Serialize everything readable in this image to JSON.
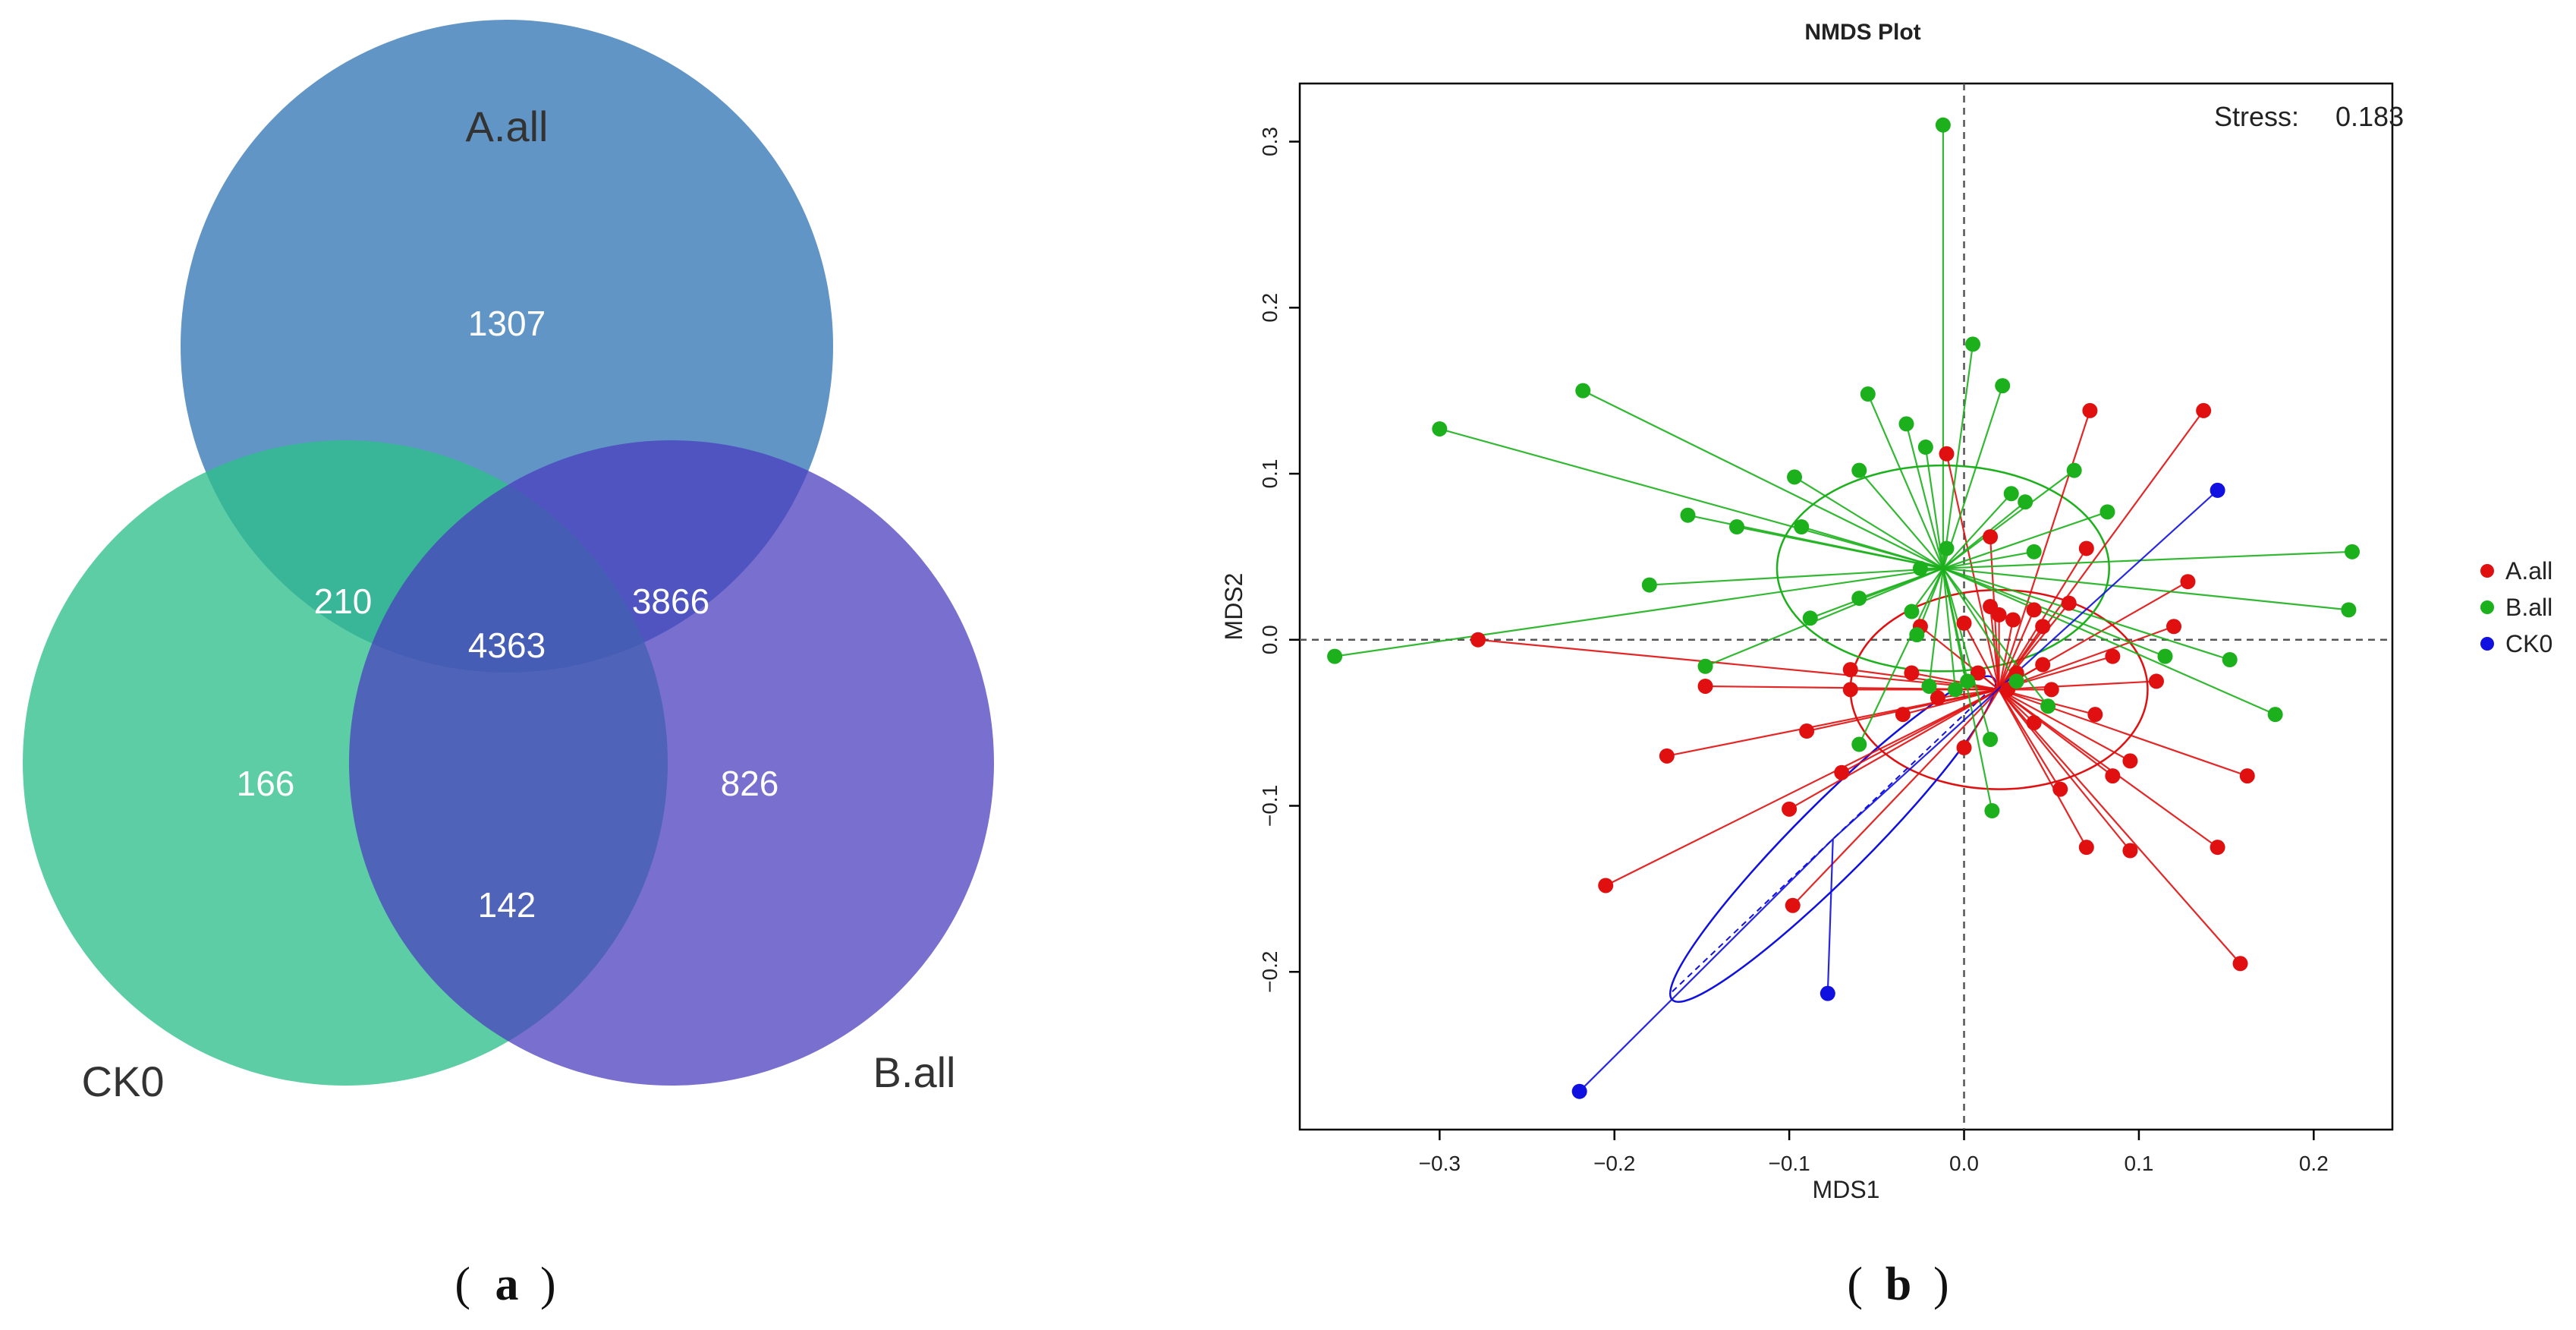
{
  "chart_data": [
    {
      "type": "venn",
      "panel_label": "(a)",
      "panel_letter": "a",
      "sets": [
        {
          "name": "A.all",
          "color": "#3a7ab8"
        },
        {
          "name": "CK0",
          "color": "#2ebf8a"
        },
        {
          "name": "B.all",
          "color": "#4b3fbf"
        }
      ],
      "regions": {
        "a_only": "1307",
        "ck0_only": "166",
        "b_only": "826",
        "a_ck0": "210",
        "a_b": "3866",
        "ck0_b": "142",
        "all_three": "4363"
      }
    },
    {
      "type": "scatter",
      "panel_label": "(b)",
      "panel_letter": "b",
      "title": "NMDS Plot",
      "xlabel": "MDS1",
      "ylabel": "MDS2",
      "xlim": [
        -0.38,
        0.245
      ],
      "ylim": [
        -0.295,
        0.335
      ],
      "x_ticks": [
        -0.3,
        -0.2,
        -0.1,
        0.0,
        0.1,
        0.2
      ],
      "x_tick_labels": [
        "−0.3",
        "−0.2",
        "−0.1",
        "0.0",
        "0.1",
        "0.2"
      ],
      "y_ticks": [
        -0.2,
        -0.1,
        0.0,
        0.1,
        0.2,
        0.3
      ],
      "y_tick_labels": [
        "−0.2",
        "−0.1",
        "0.0",
        "0.1",
        "0.2",
        "0.3"
      ],
      "stress_label": "Stress:",
      "stress_value": "0.183",
      "legend_position": "right",
      "series": [
        {
          "name": "A.all",
          "color": "#e01010",
          "centroid": [
            0.02,
            -0.03
          ],
          "ellipse": {
            "rx": 0.085,
            "ry": 0.06,
            "angle": 0
          },
          "points": [
            [
              0.072,
              0.138
            ],
            [
              0.137,
              0.138
            ],
            [
              -0.01,
              0.112
            ],
            [
              0.015,
              0.062
            ],
            [
              0.07,
              0.055
            ],
            [
              0.128,
              0.035
            ],
            [
              0.015,
              0.02
            ],
            [
              0.02,
              0.015
            ],
            [
              0.04,
              0.018
            ],
            [
              0.06,
              0.022
            ],
            [
              -0.025,
              0.008
            ],
            [
              0.0,
              0.01
            ],
            [
              0.028,
              0.012
            ],
            [
              0.045,
              0.008
            ],
            [
              0.12,
              0.008
            ],
            [
              -0.065,
              -0.018
            ],
            [
              -0.03,
              -0.02
            ],
            [
              0.008,
              -0.02
            ],
            [
              0.03,
              -0.02
            ],
            [
              0.045,
              -0.015
            ],
            [
              0.085,
              -0.01
            ],
            [
              -0.148,
              -0.028
            ],
            [
              -0.065,
              -0.03
            ],
            [
              -0.015,
              -0.035
            ],
            [
              0.025,
              -0.03
            ],
            [
              0.05,
              -0.03
            ],
            [
              0.11,
              -0.025
            ],
            [
              -0.035,
              -0.045
            ],
            [
              0.04,
              -0.05
            ],
            [
              0.075,
              -0.045
            ],
            [
              -0.09,
              -0.055
            ],
            [
              0.0,
              -0.065
            ],
            [
              0.095,
              -0.073
            ],
            [
              -0.17,
              -0.07
            ],
            [
              -0.07,
              -0.08
            ],
            [
              0.055,
              -0.09
            ],
            [
              0.085,
              -0.082
            ],
            [
              0.162,
              -0.082
            ],
            [
              -0.1,
              -0.102
            ],
            [
              0.07,
              -0.125
            ],
            [
              0.095,
              -0.127
            ],
            [
              0.145,
              -0.125
            ],
            [
              -0.205,
              -0.148
            ],
            [
              -0.098,
              -0.16
            ],
            [
              0.158,
              -0.195
            ],
            [
              -0.278,
              0.0
            ]
          ]
        },
        {
          "name": "B.all",
          "color": "#1cb01c",
          "centroid": [
            -0.012,
            0.043
          ],
          "ellipse": {
            "rx": 0.095,
            "ry": 0.062,
            "angle": 0
          },
          "points": [
            [
              -0.012,
              0.31
            ],
            [
              0.005,
              0.178
            ],
            [
              0.022,
              0.153
            ],
            [
              -0.218,
              0.15
            ],
            [
              -0.055,
              0.148
            ],
            [
              -0.3,
              0.127
            ],
            [
              -0.033,
              0.13
            ],
            [
              -0.022,
              0.116
            ],
            [
              0.063,
              0.102
            ],
            [
              -0.097,
              0.098
            ],
            [
              -0.06,
              0.102
            ],
            [
              0.027,
              0.088
            ],
            [
              0.035,
              0.083
            ],
            [
              -0.158,
              0.075
            ],
            [
              -0.13,
              0.068
            ],
            [
              -0.093,
              0.068
            ],
            [
              0.082,
              0.077
            ],
            [
              0.04,
              0.053
            ],
            [
              0.222,
              0.053
            ],
            [
              -0.01,
              0.055
            ],
            [
              -0.18,
              0.033
            ],
            [
              -0.025,
              0.043
            ],
            [
              -0.088,
              0.013
            ],
            [
              -0.03,
              0.017
            ],
            [
              -0.06,
              0.025
            ],
            [
              0.22,
              0.018
            ],
            [
              -0.027,
              0.003
            ],
            [
              -0.148,
              -0.016
            ],
            [
              0.152,
              -0.012
            ],
            [
              0.115,
              -0.01
            ],
            [
              -0.02,
              -0.028
            ],
            [
              -0.005,
              -0.03
            ],
            [
              0.002,
              -0.025
            ],
            [
              0.03,
              -0.025
            ],
            [
              0.048,
              -0.04
            ],
            [
              -0.06,
              -0.063
            ],
            [
              0.015,
              -0.06
            ],
            [
              0.178,
              -0.045
            ],
            [
              0.016,
              -0.103
            ],
            [
              -0.36,
              -0.01
            ]
          ]
        },
        {
          "name": "CK0",
          "color": "#1010e0",
          "centroid": [
            -0.075,
            -0.12
          ],
          "ellipse": {
            "rx": 0.13,
            "ry": 0.022,
            "angle": 45
          },
          "points": [
            [
              0.145,
              0.09
            ],
            [
              -0.078,
              -0.213
            ],
            [
              -0.22,
              -0.272
            ]
          ]
        }
      ]
    }
  ]
}
